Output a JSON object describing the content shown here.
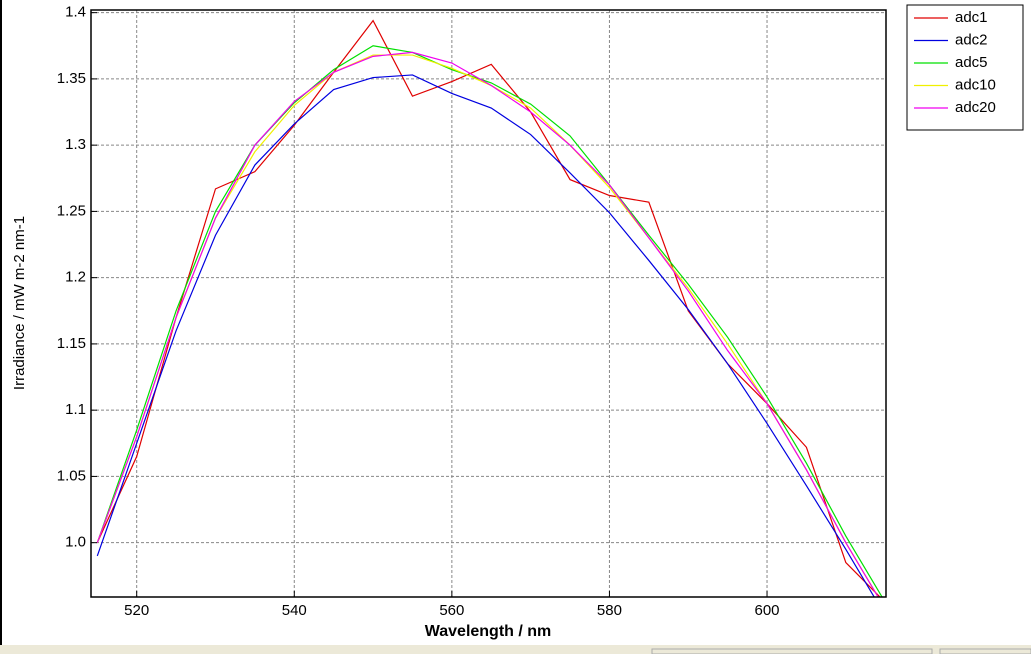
{
  "chart_data": {
    "type": "line",
    "x_label": "Wavelength / nm",
    "y_label": "Irradiance / mW m-2 nm-1",
    "x": [
      515,
      520,
      525,
      530,
      535,
      540,
      545,
      550,
      555,
      560,
      565,
      570,
      575,
      580,
      585,
      590,
      595,
      600,
      605,
      610,
      615
    ],
    "series": [
      {
        "name": "adc1",
        "color": "#e00000",
        "values": [
          1.0,
          1.065,
          1.17,
          1.267,
          1.28,
          1.315,
          1.355,
          1.394,
          1.337,
          1.348,
          1.361,
          1.325,
          1.274,
          1.262,
          1.257,
          1.175,
          1.135,
          1.105,
          1.072,
          0.985,
          0.955
        ]
      },
      {
        "name": "adc2",
        "color": "#0000e0",
        "values": [
          0.99,
          1.075,
          1.16,
          1.232,
          1.285,
          1.316,
          1.342,
          1.351,
          1.353,
          1.339,
          1.328,
          1.308,
          1.279,
          1.249,
          1.213,
          1.176,
          1.135,
          1.09,
          1.043,
          0.995,
          0.945
        ]
      },
      {
        "name": "adc5",
        "color": "#00e000",
        "values": [
          1.0,
          1.085,
          1.175,
          1.25,
          1.3,
          1.332,
          1.357,
          1.375,
          1.37,
          1.357,
          1.347,
          1.331,
          1.307,
          1.27,
          1.232,
          1.195,
          1.155,
          1.11,
          1.06,
          1.005,
          0.955
        ]
      },
      {
        "name": "adc10",
        "color": "#f0f000",
        "values": [
          1.0,
          1.08,
          1.17,
          1.245,
          1.295,
          1.33,
          1.355,
          1.368,
          1.368,
          1.358,
          1.345,
          1.328,
          1.3,
          1.268,
          1.23,
          1.192,
          1.15,
          1.105,
          1.055,
          1.0,
          0.95
        ]
      },
      {
        "name": "adc20",
        "color": "#f000f0",
        "values": [
          1.0,
          1.08,
          1.17,
          1.245,
          1.3,
          1.333,
          1.355,
          1.367,
          1.37,
          1.362,
          1.345,
          1.325,
          1.3,
          1.27,
          1.23,
          1.19,
          1.145,
          1.105,
          1.055,
          1.0,
          0.95
        ]
      }
    ],
    "xlim": [
      514.2,
      615.1
    ],
    "ylim": [
      0.959,
      1.402
    ],
    "xticks": [
      520,
      540,
      560,
      580,
      600
    ],
    "yticks": [
      1.4,
      1.35,
      1.3,
      1.25,
      1.2,
      1.15,
      1.1,
      1.05,
      {
        "value": 1,
        "label": "1.0"
      }
    ],
    "grid": true,
    "legend": "outside-top-right"
  }
}
